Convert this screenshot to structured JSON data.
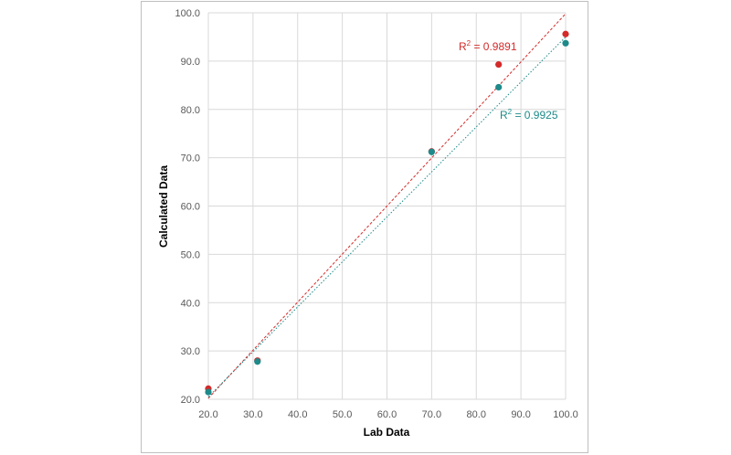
{
  "chart_data": {
    "type": "scatter",
    "xlabel": "Lab Data",
    "ylabel": "Calculated Data",
    "xlim": [
      20,
      100
    ],
    "ylim": [
      20,
      100
    ],
    "xticks": [
      "20.0",
      "30.0",
      "40.0",
      "50.0",
      "60.0",
      "70.0",
      "80.0",
      "90.0",
      "100.0"
    ],
    "yticks": [
      "20.0",
      "30.0",
      "40.0",
      "50.0",
      "60.0",
      "70.0",
      "80.0",
      "90.0",
      "100.0"
    ],
    "grid": true,
    "series": [
      {
        "color": "#d42a2a",
        "points": [
          [
            20,
            22.2
          ],
          [
            31,
            28.0
          ],
          [
            70,
            71.3
          ],
          [
            85,
            89.3
          ],
          [
            100,
            95.6
          ]
        ],
        "trendline": {
          "x": [
            20,
            100
          ],
          "y": [
            20.2,
            99.8
          ],
          "style": "dashed"
        },
        "r2_label": "R² = 0.9891"
      },
      {
        "color": "#1e8a8a",
        "points": [
          [
            20,
            21.5
          ],
          [
            31,
            27.8
          ],
          [
            70,
            71.2
          ],
          [
            85,
            84.6
          ],
          [
            100,
            93.7
          ]
        ],
        "trendline": {
          "x": [
            20,
            100
          ],
          "y": [
            20.5,
            95.0
          ],
          "style": "dotted"
        },
        "r2_label": "R² = 0.9925"
      }
    ]
  }
}
